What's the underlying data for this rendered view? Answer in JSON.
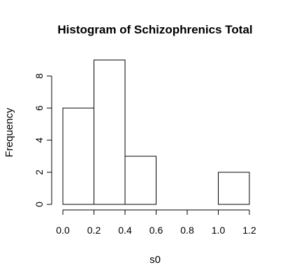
{
  "chart_data": {
    "type": "bar",
    "subtype": "histogram",
    "title": "Histogram of Schizophrenics Total",
    "xlabel": "s0",
    "ylabel": "Frequency",
    "bins": [
      {
        "start": 0.0,
        "end": 0.2,
        "count": 6
      },
      {
        "start": 0.2,
        "end": 0.4,
        "count": 9
      },
      {
        "start": 0.4,
        "end": 0.6,
        "count": 3
      },
      {
        "start": 0.6,
        "end": 0.8,
        "count": 0
      },
      {
        "start": 0.8,
        "end": 1.0,
        "count": 0
      },
      {
        "start": 1.0,
        "end": 1.2,
        "count": 2
      }
    ],
    "xlim": [
      0.0,
      1.2
    ],
    "ylim": [
      0,
      9
    ],
    "xticks": [
      "0.0",
      "0.2",
      "0.4",
      "0.6",
      "0.8",
      "1.0",
      "1.2"
    ],
    "xtick_values": [
      0.0,
      0.2,
      0.4,
      0.6,
      0.8,
      1.0,
      1.2
    ],
    "yticks": [
      "0",
      "2",
      "4",
      "6",
      "8"
    ],
    "ytick_values": [
      0,
      2,
      4,
      6,
      8
    ],
    "grid": false,
    "colors": {
      "bar_fill": "#ffffff",
      "bar_stroke": "#000000"
    }
  }
}
